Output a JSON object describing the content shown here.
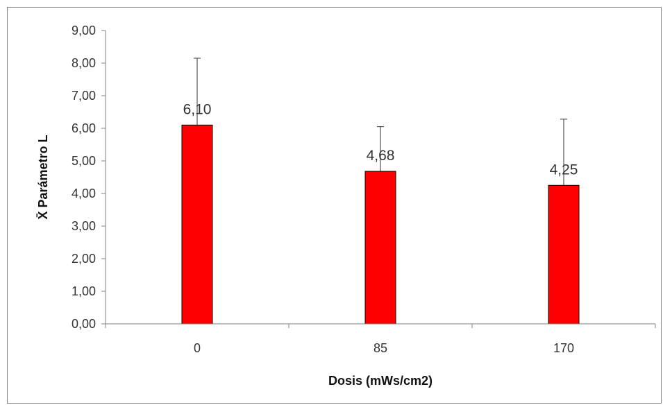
{
  "chart_data": {
    "type": "bar",
    "categories": [
      "0",
      "85",
      "170"
    ],
    "values": [
      6.1,
      4.68,
      4.25
    ],
    "data_labels": [
      "6,10",
      "4,68",
      "4,25"
    ],
    "error_bars_upper": [
      8.15,
      6.05,
      6.28
    ],
    "xlabel": "Dosis (mWs/cm2)",
    "ylabel": "X̄ Parámetro L",
    "ylim": [
      0,
      9
    ],
    "y_ticks": [
      0,
      1,
      2,
      3,
      4,
      5,
      6,
      7,
      8,
      9
    ],
    "y_tick_labels": [
      "0,00",
      "1,00",
      "2,00",
      "3,00",
      "4,00",
      "5,00",
      "6,00",
      "7,00",
      "8,00",
      "9,00"
    ],
    "grid": false,
    "legend": "none",
    "bar_color": "#ff0000"
  }
}
